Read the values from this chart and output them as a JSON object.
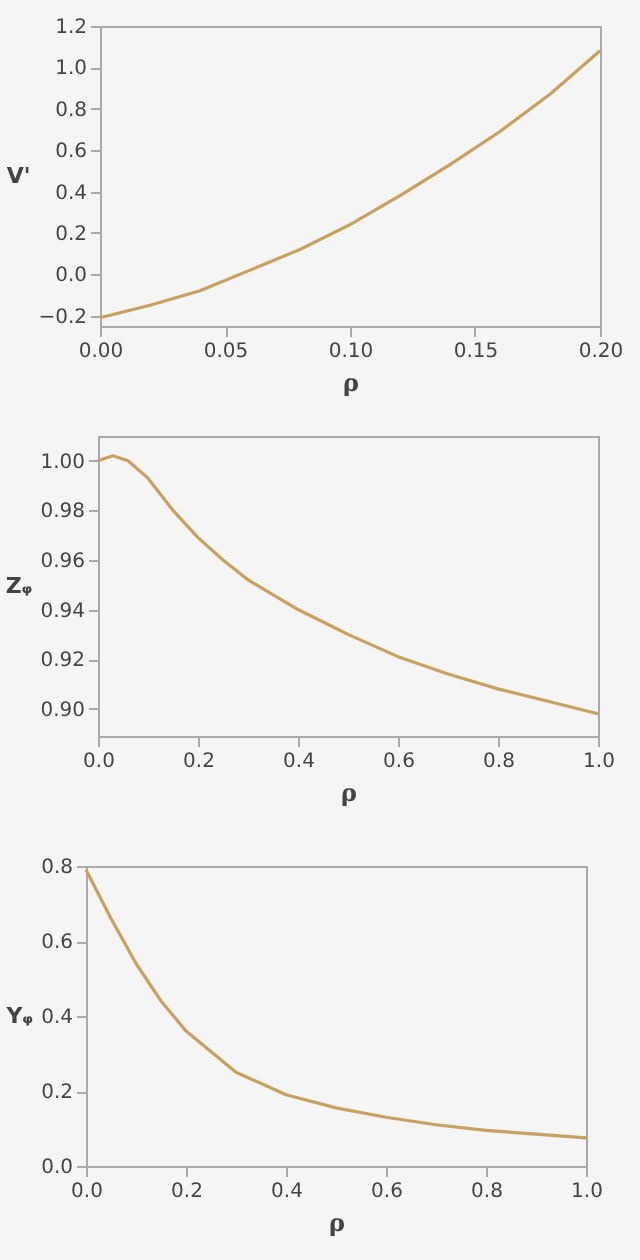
{
  "chart_data": [
    {
      "type": "line",
      "xlabel": "ρ",
      "ylabel": "V'",
      "x": [
        0,
        0.02,
        0.04,
        0.06,
        0.08,
        0.1,
        0.12,
        0.14,
        0.16,
        0.18,
        0.2
      ],
      "series": [
        {
          "color": "#c9a15e",
          "line_style": "solid",
          "values": [
            -0.21,
            -0.15,
            -0.08,
            0.02,
            0.12,
            0.24,
            0.38,
            0.53,
            0.69,
            0.87,
            1.08
          ]
        }
      ],
      "xlim": [
        0,
        0.2
      ],
      "xticks": [
        {
          "value": 0,
          "label": "0.00"
        },
        0.05,
        {
          "value": 0.1,
          "label": "0.10"
        },
        0.15,
        {
          "value": 0.2,
          "label": "0.20"
        }
      ],
      "ylim": [
        -0.25,
        1.2
      ],
      "yticks": [
        -0.2,
        {
          "value": 0,
          "label": "0.0"
        },
        0.2,
        0.4,
        0.6,
        0.8,
        {
          "value": 1,
          "label": "1.0"
        },
        1.2
      ],
      "grid": false
    },
    {
      "type": "line",
      "xlabel": "ρ",
      "ylabel": "Zᵩ",
      "x": [
        0,
        0.03,
        0.06,
        0.1,
        0.15,
        0.2,
        0.25,
        0.3,
        0.4,
        0.5,
        0.6,
        0.7,
        0.8,
        0.9,
        1.0
      ],
      "series": [
        {
          "color": "#c9a15e",
          "line_style": "solid",
          "values": [
            1.0,
            1.002,
            1.0,
            0.993,
            0.98,
            0.969,
            0.96,
            0.952,
            0.94,
            0.93,
            0.921,
            0.914,
            0.908,
            0.903,
            0.898
          ]
        }
      ],
      "xlim": [
        0,
        1
      ],
      "xticks": [
        {
          "value": 0,
          "label": "0.0"
        },
        0.2,
        0.4,
        0.6,
        0.8,
        {
          "value": 1,
          "label": "1.0"
        }
      ],
      "ylim": [
        0.889,
        1.01
      ],
      "yticks": [
        {
          "value": 0.9,
          "label": "0.90"
        },
        0.92,
        0.94,
        0.96,
        0.98,
        {
          "value": 1,
          "label": "1.00"
        }
      ],
      "grid": false
    },
    {
      "type": "line",
      "xlabel": "ρ",
      "ylabel": "Yᵩ",
      "x": [
        0,
        0.05,
        0.1,
        0.15,
        0.2,
        0.3,
        0.4,
        0.5,
        0.6,
        0.7,
        0.8,
        0.9,
        1.0
      ],
      "series": [
        {
          "color": "#c9a15e",
          "line_style": "solid",
          "values": [
            0.79,
            0.66,
            0.54,
            0.44,
            0.36,
            0.25,
            0.19,
            0.155,
            0.13,
            0.11,
            0.095,
            0.085,
            0.075
          ]
        }
      ],
      "xlim": [
        0,
        1
      ],
      "xticks": [
        {
          "value": 0,
          "label": "0.0"
        },
        0.2,
        0.4,
        0.6,
        0.8,
        {
          "value": 1,
          "label": "1.0"
        }
      ],
      "ylim": [
        0,
        0.8
      ],
      "yticks": [
        {
          "value": 0,
          "label": "0.0"
        },
        0.2,
        0.4,
        0.6,
        0.8
      ],
      "grid": false
    }
  ]
}
